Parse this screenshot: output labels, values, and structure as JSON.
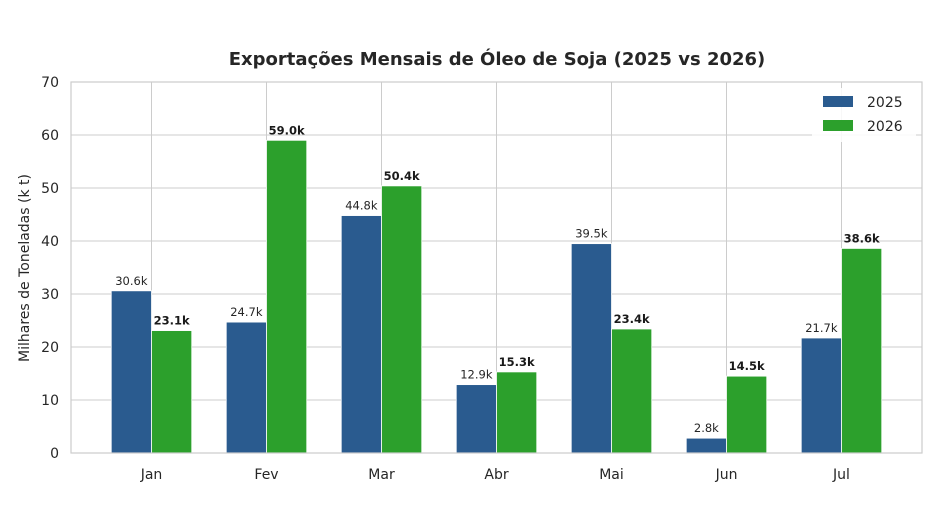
{
  "chart_data": {
    "type": "bar",
    "title": "Exportações Mensais de Óleo de Soja (2025 vs 2026)",
    "xlabel": "",
    "ylabel": "Milhares de Toneladas (k t)",
    "ylim": [
      0,
      70
    ],
    "yticks": [
      0,
      10,
      20,
      30,
      40,
      50,
      60,
      70
    ],
    "grid": true,
    "legend_position": "top-right",
    "categories": [
      "Jan",
      "Fev",
      "Mar",
      "Abr",
      "Mai",
      "Jun",
      "Jul"
    ],
    "series": [
      {
        "name": "2025",
        "color": "#2a5b8f",
        "values": [
          30.6,
          24.7,
          44.8,
          12.9,
          39.5,
          2.8,
          21.7
        ],
        "labels": [
          "30.6k",
          "24.7k",
          "44.8k",
          "12.9k",
          "39.5k",
          "2.8k",
          "21.7k"
        ]
      },
      {
        "name": "2026",
        "color": "#2ca02c",
        "values": [
          23.1,
          59.0,
          50.4,
          15.3,
          23.4,
          14.5,
          38.6
        ],
        "labels": [
          "23.1k",
          "59.0k",
          "50.4k",
          "15.3k",
          "23.4k",
          "14.5k",
          "38.6k"
        ]
      }
    ]
  }
}
